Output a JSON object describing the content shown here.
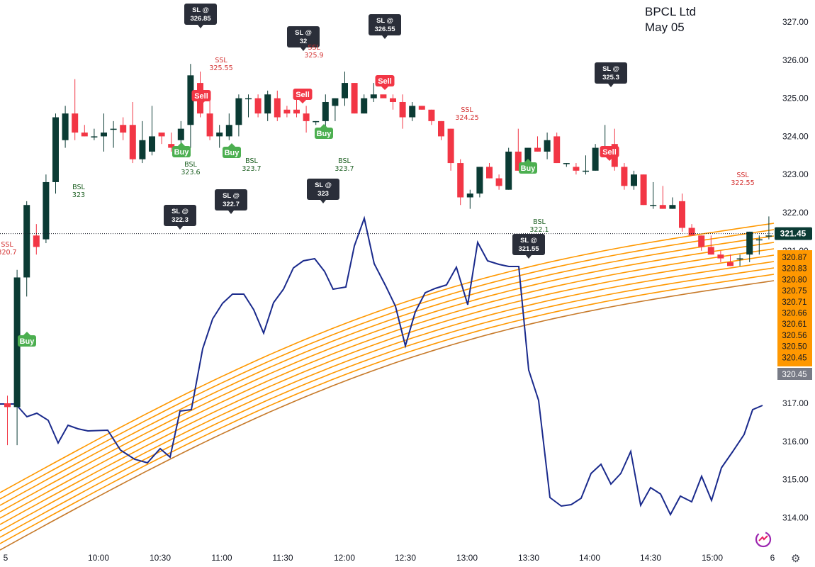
{
  "header": {
    "symbol": "BPCL Ltd",
    "date": "May 05"
  },
  "chart_data": {
    "type": "candlestick",
    "y_axis": {
      "min": 313.6,
      "max": 327.4,
      "ticks": [
        "327.00",
        "326.00",
        "325.00",
        "324.00",
        "323.00",
        "322.00",
        "321.00",
        "317.00",
        "316.00",
        "315.00",
        "314.00"
      ]
    },
    "x_axis": {
      "ticks": [
        "5",
        "10:00",
        "10:30",
        "11:00",
        "11:30",
        "12:00",
        "12:30",
        "13:00",
        "13:30",
        "14:00",
        "14:30",
        "15:00",
        "6"
      ]
    },
    "candles": [
      {
        "o": 317.0,
        "h": 317.2,
        "l": 315.9,
        "c": 316.9
      },
      {
        "o": 316.9,
        "h": 320.5,
        "l": 315.9,
        "c": 320.3
      },
      {
        "o": 320.3,
        "h": 322.3,
        "l": 319.8,
        "c": 322.2
      },
      {
        "o": 321.4,
        "h": 321.7,
        "l": 320.9,
        "c": 321.1
      },
      {
        "o": 321.3,
        "h": 323.0,
        "l": 321.2,
        "c": 322.8
      },
      {
        "o": 322.8,
        "h": 324.6,
        "l": 322.5,
        "c": 324.5
      },
      {
        "o": 323.9,
        "h": 324.8,
        "l": 323.7,
        "c": 324.6
      },
      {
        "o": 324.6,
        "h": 325.5,
        "l": 323.9,
        "c": 324.1
      },
      {
        "o": 324.1,
        "h": 324.3,
        "l": 324.0,
        "c": 324.0
      },
      {
        "o": 324.0,
        "h": 324.2,
        "l": 323.9,
        "c": 324.0
      },
      {
        "o": 324.0,
        "h": 324.6,
        "l": 323.6,
        "c": 324.1
      },
      {
        "o": 324.2,
        "h": 324.4,
        "l": 323.7,
        "c": 324.2
      },
      {
        "o": 324.3,
        "h": 324.5,
        "l": 323.9,
        "c": 324.1
      },
      {
        "o": 324.3,
        "h": 324.9,
        "l": 323.3,
        "c": 323.4
      },
      {
        "o": 323.4,
        "h": 324.4,
        "l": 323.3,
        "c": 323.9
      },
      {
        "o": 323.6,
        "h": 324.8,
        "l": 323.5,
        "c": 324.0
      },
      {
        "o": 324.1,
        "h": 324.1,
        "l": 323.8,
        "c": 324.0
      },
      {
        "o": 323.8,
        "h": 324.1,
        "l": 323.6,
        "c": 323.7
      },
      {
        "o": 323.9,
        "h": 324.4,
        "l": 323.6,
        "c": 324.2
      },
      {
        "o": 324.3,
        "h": 325.9,
        "l": 323.7,
        "c": 325.6
      },
      {
        "o": 325.4,
        "h": 325.7,
        "l": 324.5,
        "c": 324.6
      },
      {
        "o": 324.6,
        "h": 325.0,
        "l": 323.9,
        "c": 324.0
      },
      {
        "o": 324.0,
        "h": 324.3,
        "l": 323.7,
        "c": 324.1
      },
      {
        "o": 324.0,
        "h": 324.6,
        "l": 323.9,
        "c": 324.3
      },
      {
        "o": 324.3,
        "h": 325.1,
        "l": 324.0,
        "c": 325.0
      },
      {
        "o": 325.0,
        "h": 325.1,
        "l": 324.5,
        "c": 325.0
      },
      {
        "o": 325.0,
        "h": 325.1,
        "l": 324.5,
        "c": 324.6
      },
      {
        "o": 324.6,
        "h": 325.2,
        "l": 324.4,
        "c": 325.1
      },
      {
        "o": 325.0,
        "h": 325.2,
        "l": 324.4,
        "c": 324.5
      },
      {
        "o": 324.7,
        "h": 324.8,
        "l": 324.5,
        "c": 324.6
      },
      {
        "o": 324.7,
        "h": 325.1,
        "l": 324.5,
        "c": 324.6
      },
      {
        "o": 324.6,
        "h": 324.8,
        "l": 324.1,
        "c": 324.4
      },
      {
        "o": 324.4,
        "h": 324.4,
        "l": 324.3,
        "c": 324.4
      },
      {
        "o": 324.4,
        "h": 325.1,
        "l": 324.1,
        "c": 324.9
      },
      {
        "o": 324.8,
        "h": 325.0,
        "l": 324.4,
        "c": 325.0
      },
      {
        "o": 325.0,
        "h": 325.7,
        "l": 324.8,
        "c": 325.4
      },
      {
        "o": 325.4,
        "h": 325.4,
        "l": 324.6,
        "c": 324.6
      },
      {
        "o": 324.6,
        "h": 325.1,
        "l": 324.6,
        "c": 325.0
      },
      {
        "o": 325.0,
        "h": 325.4,
        "l": 324.9,
        "c": 325.1
      },
      {
        "o": 325.1,
        "h": 325.0,
        "l": 325.0,
        "c": 325.0
      },
      {
        "o": 325.0,
        "h": 325.1,
        "l": 324.7,
        "c": 324.9
      },
      {
        "o": 324.9,
        "h": 325.1,
        "l": 324.2,
        "c": 324.5
      },
      {
        "o": 324.5,
        "h": 324.9,
        "l": 324.4,
        "c": 324.8
      },
      {
        "o": 324.8,
        "h": 324.8,
        "l": 324.7,
        "c": 324.7
      },
      {
        "o": 324.7,
        "h": 324.7,
        "l": 324.3,
        "c": 324.4
      },
      {
        "o": 324.4,
        "h": 324.4,
        "l": 323.9,
        "c": 324.0
      },
      {
        "o": 324.2,
        "h": 324.2,
        "l": 323.1,
        "c": 323.3
      },
      {
        "o": 323.3,
        "h": 323.4,
        "l": 322.2,
        "c": 322.4
      },
      {
        "o": 322.4,
        "h": 322.6,
        "l": 322.1,
        "c": 322.5
      },
      {
        "o": 322.5,
        "h": 323.2,
        "l": 322.4,
        "c": 323.2
      },
      {
        "o": 323.2,
        "h": 323.3,
        "l": 322.9,
        "c": 322.9
      },
      {
        "o": 322.9,
        "h": 323.0,
        "l": 322.6,
        "c": 322.7
      },
      {
        "o": 322.6,
        "h": 323.7,
        "l": 322.6,
        "c": 323.6
      },
      {
        "o": 323.6,
        "h": 324.2,
        "l": 323.1,
        "c": 323.1
      },
      {
        "o": 323.1,
        "h": 323.7,
        "l": 323.1,
        "c": 323.7
      },
      {
        "o": 323.7,
        "h": 324.0,
        "l": 323.6,
        "c": 323.6
      },
      {
        "o": 323.6,
        "h": 324.1,
        "l": 323.4,
        "c": 323.9
      },
      {
        "o": 324.0,
        "h": 324.1,
        "l": 323.3,
        "c": 323.3
      },
      {
        "o": 323.3,
        "h": 323.3,
        "l": 323.2,
        "c": 323.3
      },
      {
        "o": 323.2,
        "h": 323.3,
        "l": 323.0,
        "c": 323.1
      },
      {
        "o": 323.1,
        "h": 323.5,
        "l": 323.0,
        "c": 323.1
      },
      {
        "o": 323.1,
        "h": 323.8,
        "l": 323.1,
        "c": 323.7
      },
      {
        "o": 323.7,
        "h": 324.3,
        "l": 323.6,
        "c": 323.7
      },
      {
        "o": 323.8,
        "h": 324.2,
        "l": 323.1,
        "c": 323.2
      },
      {
        "o": 323.2,
        "h": 323.3,
        "l": 322.6,
        "c": 322.7
      },
      {
        "o": 322.7,
        "h": 323.1,
        "l": 322.6,
        "c": 323.0
      },
      {
        "o": 323.0,
        "h": 323.0,
        "l": 322.2,
        "c": 322.2
      },
      {
        "o": 322.2,
        "h": 322.8,
        "l": 322.1,
        "c": 322.2
      },
      {
        "o": 322.2,
        "h": 322.7,
        "l": 322.1,
        "c": 322.1
      },
      {
        "o": 322.1,
        "h": 322.4,
        "l": 322.1,
        "c": 322.2
      },
      {
        "o": 322.3,
        "h": 322.5,
        "l": 321.5,
        "c": 321.6
      },
      {
        "o": 321.6,
        "h": 321.7,
        "l": 321.4,
        "c": 321.4
      },
      {
        "o": 321.4,
        "h": 321.4,
        "l": 321.0,
        "c": 321.1
      },
      {
        "o": 321.1,
        "h": 321.4,
        "l": 320.9,
        "c": 320.9
      },
      {
        "o": 320.9,
        "h": 321.0,
        "l": 320.7,
        "c": 320.8
      },
      {
        "o": 320.7,
        "h": 320.9,
        "l": 320.6,
        "c": 320.6
      },
      {
        "o": 320.8,
        "h": 320.9,
        "l": 320.6,
        "c": 320.8
      },
      {
        "o": 320.9,
        "h": 321.5,
        "l": 320.7,
        "c": 321.5
      },
      {
        "o": 321.3,
        "h": 321.4,
        "l": 320.9,
        "c": 321.3
      },
      {
        "o": 321.4,
        "h": 321.9,
        "l": 321.3,
        "c": 321.4
      }
    ],
    "current_price": {
      "value": 321.45,
      "label": "321.45"
    },
    "ema_labels": [
      "320.87",
      "320.83",
      "320.80",
      "320.75",
      "320.71",
      "320.66",
      "320.61",
      "320.56",
      "320.50",
      "320.45"
    ],
    "ema_last_label": "320.45",
    "markers": [
      {
        "type": "sl",
        "lines": [
          "SL @",
          "326.85"
        ],
        "i": 14
      },
      {
        "type": "sl",
        "lines": [
          "SL @",
          "32"
        ],
        "i": 21
      },
      {
        "type": "sl",
        "lines": [
          "SL @",
          "326.55"
        ],
        "i": 28
      },
      {
        "type": "sl",
        "lines": [
          "SL @",
          "325.3"
        ],
        "i": 45
      },
      {
        "type": "sl",
        "lines": [
          "SL @",
          "322.3"
        ],
        "i": 13
      },
      {
        "type": "sl",
        "lines": [
          "SL @",
          "322.7"
        ],
        "i": 17
      },
      {
        "type": "sl",
        "lines": [
          "SL @",
          "323"
        ],
        "i": 25
      },
      {
        "type": "sl",
        "lines": [
          "SL @",
          "321.55"
        ],
        "i": 41
      },
      {
        "type": "ssl",
        "lines": [
          "SSL",
          "325.55"
        ],
        "i": 17
      },
      {
        "type": "ssl",
        "lines": [
          "SSL",
          "325.9"
        ],
        "i": 25
      },
      {
        "type": "ssl",
        "lines": [
          "SSL",
          "324.25"
        ],
        "i": 37
      },
      {
        "type": "ssl",
        "lines": [
          "SSL",
          "322.55"
        ],
        "i": 60
      },
      {
        "type": "ssl",
        "lines": [
          "SSL",
          "320.7"
        ],
        "i": 0
      },
      {
        "type": "bsl",
        "lines": [
          "BSL",
          "323"
        ],
        "i": 6
      },
      {
        "type": "bsl",
        "lines": [
          "BSL",
          "323.6"
        ],
        "i": 15
      },
      {
        "type": "bsl",
        "lines": [
          "BSL",
          "323.7"
        ],
        "i": 20
      },
      {
        "type": "bsl",
        "lines": [
          "BSL",
          "323.7"
        ],
        "i": 27
      },
      {
        "type": "bsl",
        "lines": [
          "BSL",
          "322.1"
        ],
        "i": 43
      },
      {
        "type": "buy",
        "label": "Buy",
        "i": 2
      },
      {
        "type": "buy",
        "label": "Buy",
        "i": 14
      },
      {
        "type": "buy",
        "label": "Buy",
        "i": 18
      },
      {
        "type": "buy",
        "label": "Buy",
        "i": 26
      },
      {
        "type": "buy",
        "label": "Buy",
        "i": 42
      },
      {
        "type": "sell",
        "label": "Sell",
        "i": 16
      },
      {
        "type": "sell",
        "label": "Sell",
        "i": 24
      },
      {
        "type": "sell",
        "label": "Sell",
        "i": 31
      },
      {
        "type": "sell",
        "label": "Sell",
        "i": 49
      }
    ],
    "colors": {
      "up": "#0b3b34",
      "down": "#f23645",
      "oscillator": "#1a2a8c",
      "ema": "#ff9800",
      "ema_last": "#c77a2a",
      "sl_bg": "#2a2e39",
      "buy": "#4caf50",
      "sell": "#f23645",
      "ssl_text": "#d32f2f",
      "bsl_text": "#1b5e20"
    }
  }
}
